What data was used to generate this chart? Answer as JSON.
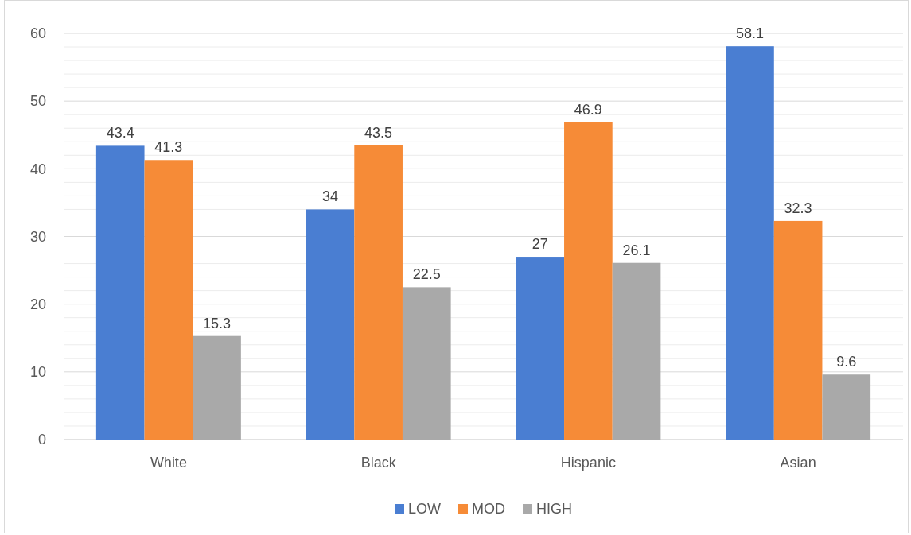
{
  "chart_data": {
    "type": "bar",
    "categories": [
      "White",
      "Black",
      "Hispanic",
      "Asian"
    ],
    "series": [
      {
        "name": "LOW",
        "color": "#4a7ed2",
        "values": [
          43.4,
          34,
          27,
          58.1
        ]
      },
      {
        "name": "MOD",
        "color": "#f68b37",
        "values": [
          41.3,
          43.5,
          46.9,
          32.3
        ]
      },
      {
        "name": "HIGH",
        "color": "#a9a9a9",
        "values": [
          15.3,
          22.5,
          26.1,
          9.6
        ]
      }
    ],
    "ylim": [
      0,
      60
    ],
    "yticks": [
      0,
      {
        "value": 2,
        "label": null
      },
      {
        "value": 4,
        "label": null
      },
      {
        "value": 6,
        "label": null
      },
      {
        "value": 8,
        "label": null
      },
      10,
      {
        "value": 12,
        "label": null
      },
      {
        "value": 14,
        "label": null
      },
      {
        "value": 16,
        "label": null
      },
      {
        "value": 18,
        "label": null
      },
      20,
      {
        "value": 22,
        "label": null
      },
      {
        "value": 24,
        "label": null
      },
      {
        "value": 26,
        "label": null
      },
      {
        "value": 28,
        "label": null
      },
      30,
      {
        "value": 32,
        "label": null
      },
      {
        "value": 34,
        "label": null
      },
      {
        "value": 36,
        "label": null
      },
      {
        "value": 38,
        "label": null
      },
      40,
      {
        "value": 42,
        "label": null
      },
      {
        "value": 44,
        "label": null
      },
      {
        "value": 46,
        "label": null
      },
      {
        "value": 48,
        "label": null
      },
      50,
      {
        "value": 52,
        "label": null
      },
      {
        "value": 54,
        "label": null
      },
      {
        "value": 56,
        "label": null
      },
      {
        "value": 58,
        "label": null
      },
      60
    ],
    "grid": "y",
    "data_labels": true,
    "legend": "bottom"
  }
}
